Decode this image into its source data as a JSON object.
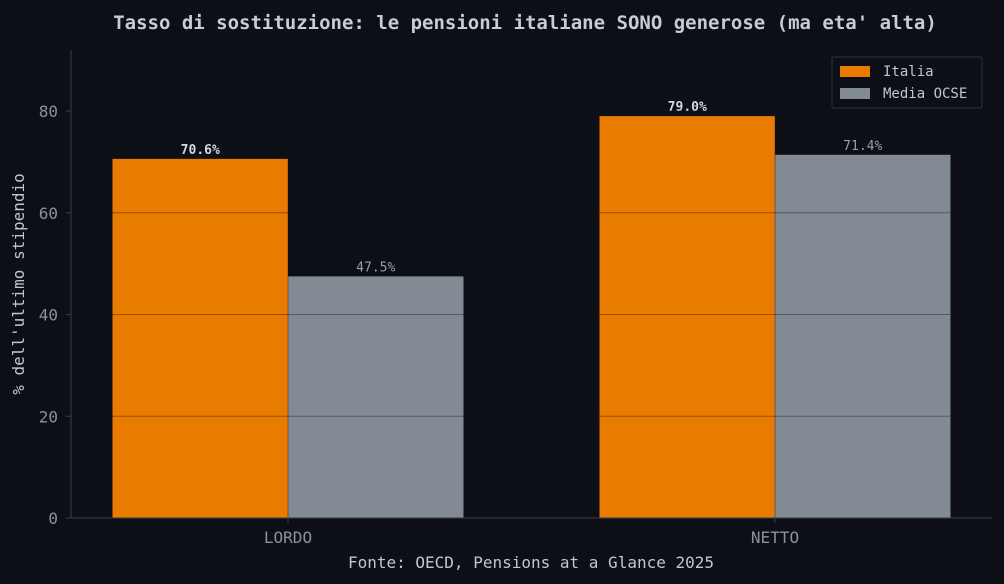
{
  "chart_data": {
    "type": "bar",
    "title": "Tasso di sostituzione: le pensioni italiane SONO generose (ma eta' alta)",
    "xlabel": "Fonte: OECD, Pensions at a Glance 2025",
    "ylabel": "% dell'ultimo stipendio",
    "categories": [
      "LORDO",
      "NETTO"
    ],
    "series": [
      {
        "name": "Italia",
        "values": [
          70.6,
          79.0
        ],
        "labels": [
          "70.6%",
          "79.0%"
        ],
        "color": "#e97b00"
      },
      {
        "name": "Media OCSE",
        "values": [
          47.5,
          71.4
        ],
        "labels": [
          "47.5%",
          "71.4%"
        ],
        "color": "#828a93"
      }
    ],
    "ylim": [
      0,
      92
    ],
    "yticks": [
      0,
      20,
      40,
      60,
      80
    ],
    "grid": true,
    "legend": "top-right"
  }
}
